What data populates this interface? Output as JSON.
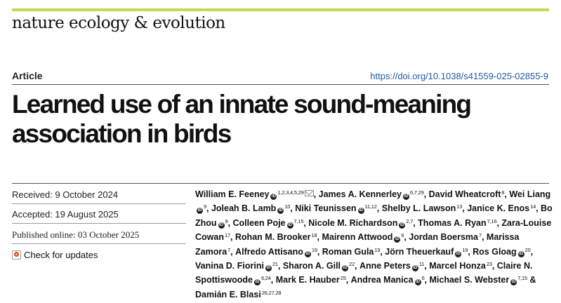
{
  "journal": "nature ecology & evolution",
  "article_type": "Article",
  "doi": "https://doi.org/10.1038/s41559-025-02855-9",
  "title": "Learned use of an innate sound-meaning association in birds",
  "received": "Received: 9 October 2024",
  "accepted": "Accepted: 19 August 2025",
  "published": "Published online: 03 October 2025",
  "check_updates": "Check for updates",
  "orcid_glyph": "iD",
  "authors": [
    {
      "name": "William E. Feeney",
      "sup": "1,2,3,4,5,29",
      "orcid": true,
      "email": true
    },
    {
      "name": "James A. Kennerley",
      "sup": "6,7,29",
      "orcid": true
    },
    {
      "name": "David Wheatcroft",
      "sup": "8"
    },
    {
      "name": "Wei Liang",
      "sup": "9",
      "orcid": true
    },
    {
      "name": "Joleah B. Lamb",
      "sup": "10",
      "orcid": true
    },
    {
      "name": "Niki Teunissen",
      "sup": "11,12",
      "orcid": true
    },
    {
      "name": "Shelby L. Lawson",
      "sup": "13"
    },
    {
      "name": "Janice K. Enos",
      "sup": "14"
    },
    {
      "name": "Bo Zhou",
      "sup": "9",
      "orcid": true
    },
    {
      "name": "Colleen Poje",
      "sup": "7,15",
      "orcid": true
    },
    {
      "name": "Nicole M. Richardson",
      "sup": "2,7",
      "orcid": true
    },
    {
      "name": "Thomas A. Ryan",
      "sup": "7,16"
    },
    {
      "name": "Zara-Louise Cowan",
      "sup": "17"
    },
    {
      "name": "Rohan M. Brooker",
      "sup": "18"
    },
    {
      "name": "Mairenn Attwood",
      "sup": "6",
      "orcid": true
    },
    {
      "name": "Jordan Boersma",
      "sup": "7"
    },
    {
      "name": "Marissa Zamora",
      "sup": "7"
    },
    {
      "name": "Alfredo Attisano",
      "sup": "19",
      "orcid": true
    },
    {
      "name": "Roman Gula",
      "sup": "19"
    },
    {
      "name": "Jörn Theuerkauf",
      "sup": "19",
      "orcid": true
    },
    {
      "name": "Ros Gloag",
      "sup": "20",
      "orcid": true
    },
    {
      "name": "Vanina D. Fiorini",
      "sup": "21",
      "orcid": true
    },
    {
      "name": "Sharon A. Gill",
      "sup": "22",
      "orcid": true
    },
    {
      "name": "Anne Peters",
      "sup": "11",
      "orcid": true
    },
    {
      "name": "Marcel Honza",
      "sup": "23"
    },
    {
      "name": "Claire N. Spottiswoode",
      "sup": "6,24",
      "orcid": true
    },
    {
      "name": "Mark E. Hauber",
      "sup": "25"
    },
    {
      "name": "Andrea Manica",
      "sup": "6",
      "orcid": true
    },
    {
      "name": "Michael S. Webster",
      "sup": "7,15",
      "orcid": true
    },
    {
      "name": "Damián E. Blasi",
      "sup": "26,27,28",
      "last": true
    }
  ],
  "colors": {
    "accent_bar": "#c8d951",
    "doi_link": "#1f5aa3"
  }
}
